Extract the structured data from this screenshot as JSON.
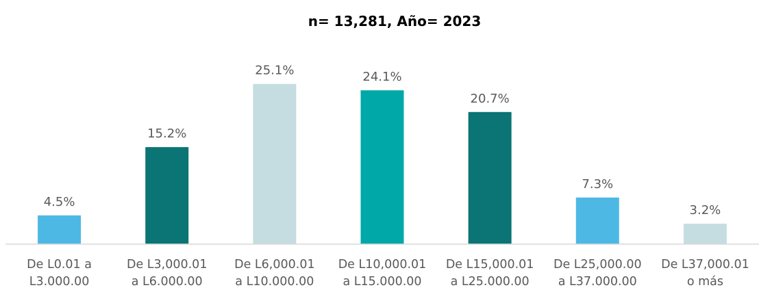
{
  "chart_data": {
    "type": "bar",
    "title": "n= 13,281, Año= 2023",
    "categories": [
      "De L0.01 a\nL3.000.00",
      "De L3,000.01\na L6.000.00",
      "De L6,000.01\na L10.000.00",
      "De L10,000.01\na L15.000.00",
      "De L15,000.01\na L25.000.00",
      "De L25,000.00\na L37.000.00",
      "De L37,000.01\no más"
    ],
    "values": [
      4.5,
      15.2,
      25.1,
      24.1,
      20.7,
      7.3,
      3.2
    ],
    "value_labels": [
      "4.5%",
      "15.2%",
      "25.1%",
      "24.1%",
      "20.7%",
      "7.3%",
      "3.2%"
    ],
    "colors": [
      "#4db8e4",
      "#0b7474",
      "#c5dde0",
      "#00a9a8",
      "#0b7474",
      "#4db8e4",
      "#c5dde0"
    ],
    "ylim": [
      0,
      30
    ]
  }
}
